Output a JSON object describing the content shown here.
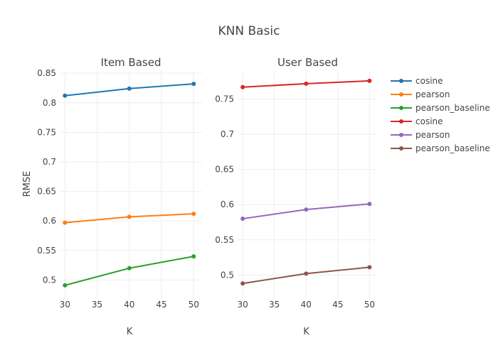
{
  "chart_data": {
    "type": "line",
    "title": "KNN Basic",
    "ylabel": "RMSE",
    "subplots": [
      {
        "title": "Item Based",
        "xlabel": "K",
        "x": [
          30,
          40,
          50
        ],
        "xticks": [
          "30",
          "35",
          "40",
          "45",
          "50"
        ],
        "xlim": [
          29.2,
          51.3
        ],
        "ylim": [
          0.468,
          0.855
        ],
        "yticks": [
          "0.5",
          "0.55",
          "0.6",
          "0.65",
          "0.7",
          "0.75",
          "0.8",
          "0.85"
        ],
        "series": [
          {
            "name": "cosine",
            "color": "#1f77b4",
            "values": [
              0.812,
              0.824,
              0.832
            ]
          },
          {
            "name": "pearson",
            "color": "#ff7f0e",
            "values": [
              0.597,
              0.607,
              0.612
            ]
          },
          {
            "name": "pearson_baseline",
            "color": "#2ca02c",
            "values": [
              0.491,
              0.52,
              0.54
            ]
          }
        ]
      },
      {
        "title": "User Based",
        "xlabel": "K",
        "x": [
          30,
          40,
          50
        ],
        "xticks": [
          "30",
          "35",
          "40",
          "45",
          "50"
        ],
        "xlim": [
          29.2,
          51.3
        ],
        "ylim": [
          0.466,
          0.791
        ],
        "yticks": [
          "0.5",
          "0.55",
          "0.6",
          "0.65",
          "0.7",
          "0.75"
        ],
        "series": [
          {
            "name": "cosine",
            "color": "#d62728",
            "values": [
              0.767,
              0.772,
              0.776
            ]
          },
          {
            "name": "pearson",
            "color": "#9467bd",
            "values": [
              0.58,
              0.593,
              0.601
            ]
          },
          {
            "name": "pearson_baseline",
            "color": "#8c564b",
            "values": [
              0.488,
              0.502,
              0.511
            ]
          }
        ]
      }
    ],
    "legend": [
      {
        "name": "cosine",
        "color": "#1f77b4"
      },
      {
        "name": "pearson",
        "color": "#ff7f0e"
      },
      {
        "name": "pearson_baseline",
        "color": "#2ca02c"
      },
      {
        "name": "cosine",
        "color": "#d62728"
      },
      {
        "name": "pearson",
        "color": "#9467bd"
      },
      {
        "name": "pearson_baseline",
        "color": "#8c564b"
      }
    ],
    "legend_position": "right",
    "grid": true
  }
}
